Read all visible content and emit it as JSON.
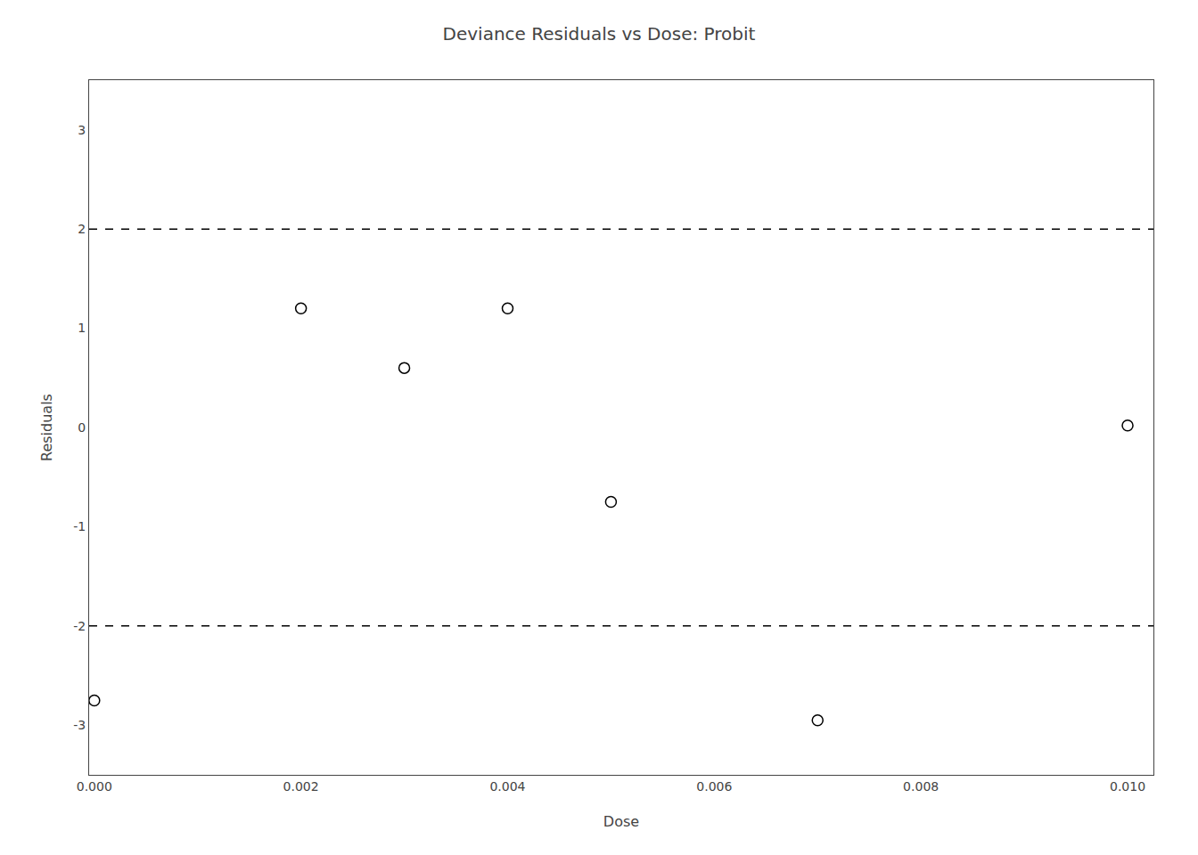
{
  "chart_data": {
    "type": "scatter",
    "title": "Deviance Residuals vs Dose: Probit",
    "xlabel": "Dose",
    "ylabel": "Residuals",
    "x": [
      0.0,
      0.002,
      0.003,
      0.004,
      0.005,
      0.007,
      0.01
    ],
    "values": [
      -2.75,
      1.2,
      0.6,
      1.2,
      -0.75,
      -2.95,
      0.02
    ],
    "marker": "circle-open",
    "color": "black",
    "reference_lines": [
      {
        "y": 2.0,
        "color": "black",
        "line_style": "dash"
      },
      {
        "y": -2.0,
        "color": "black",
        "line_style": "dash"
      }
    ],
    "xlim": [
      -5e-05,
      0.01025
    ],
    "ylim": [
      -3.5,
      3.5
    ],
    "xticks": [
      {
        "value": 0.0,
        "label": "0.000"
      },
      {
        "value": 0.002,
        "label": "0.002"
      },
      {
        "value": 0.004,
        "label": "0.004"
      },
      {
        "value": 0.006,
        "label": "0.006"
      },
      {
        "value": 0.008,
        "label": "0.008"
      },
      {
        "value": 0.01,
        "label": "0.010"
      }
    ],
    "yticks": [
      -3,
      -2,
      -1,
      0,
      1,
      2,
      3
    ],
    "grid": false
  }
}
